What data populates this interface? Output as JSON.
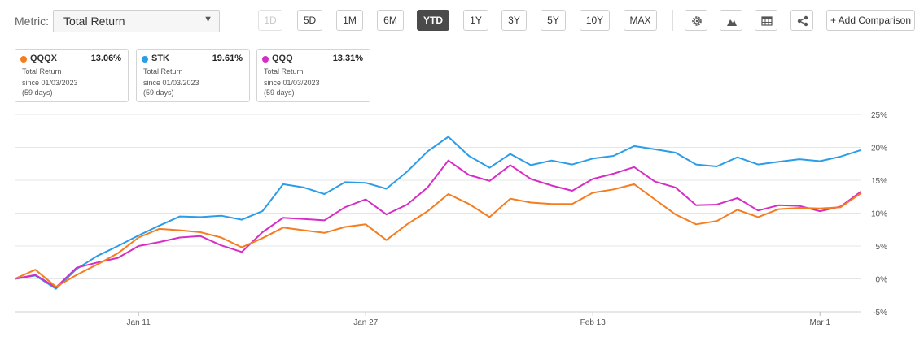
{
  "toolbar": {
    "metric_label": "Metric:",
    "metric_value": "Total Return",
    "periods": [
      {
        "label": "1D",
        "state": "disabled"
      },
      {
        "label": "5D",
        "state": "normal"
      },
      {
        "label": "1M",
        "state": "normal"
      },
      {
        "label": "6M",
        "state": "normal"
      },
      {
        "label": "YTD",
        "state": "active"
      },
      {
        "label": "1Y",
        "state": "normal"
      },
      {
        "label": "3Y",
        "state": "normal"
      },
      {
        "label": "5Y",
        "state": "normal"
      },
      {
        "label": "10Y",
        "state": "normal"
      },
      {
        "label": "MAX",
        "state": "normal"
      }
    ],
    "icons": [
      "gear-icon",
      "mountain-chart-icon",
      "table-icon",
      "share-icon"
    ],
    "add_comparison": "+ Add Comparison"
  },
  "cards": [
    {
      "ticker": "QQQX",
      "value": "13.06%",
      "color": "#f57c1f",
      "line1": "Total Return",
      "line2": "since 01/03/2023",
      "line3": "(59 days)"
    },
    {
      "ticker": "STK",
      "value": "19.61%",
      "color": "#2b9de8",
      "line1": "Total Return",
      "line2": "since 01/03/2023",
      "line3": "(59 days)"
    },
    {
      "ticker": "QQQ",
      "value": "13.31%",
      "color": "#d62ec5",
      "line1": "Total Return",
      "line2": "since 01/03/2023",
      "line3": "(59 days)"
    }
  ],
  "chart_data": {
    "type": "line",
    "y_ticks": [
      "25%",
      "20%",
      "15%",
      "10%",
      "5%",
      "0%",
      "-5%"
    ],
    "x_ticks": [
      {
        "label": "Jan 11",
        "index": 6
      },
      {
        "label": "Jan 27",
        "index": 17
      },
      {
        "label": "Feb 13",
        "index": 28
      },
      {
        "label": "Mar 1",
        "index": 39
      }
    ],
    "ylim": [
      -5,
      25
    ],
    "grid": true,
    "series": [
      {
        "name": "STK",
        "color": "#2b9de8",
        "values": [
          0,
          0.5,
          -1.5,
          1.5,
          3.5,
          5.0,
          6.6,
          8.1,
          9.5,
          9.4,
          9.6,
          9.0,
          10.3,
          14.4,
          13.9,
          12.9,
          14.7,
          14.6,
          13.7,
          16.3,
          19.4,
          21.6,
          18.7,
          16.9,
          19.0,
          17.3,
          18.0,
          17.4,
          18.3,
          18.7,
          20.2,
          19.7,
          19.2,
          17.4,
          17.1,
          18.5,
          17.4,
          17.8,
          18.2,
          17.9,
          18.6,
          19.61
        ]
      },
      {
        "name": "QQQ",
        "color": "#d62ec5",
        "values": [
          0,
          0.6,
          -1.3,
          1.7,
          2.5,
          3.2,
          5.0,
          5.6,
          6.3,
          6.5,
          5.1,
          4.1,
          7.1,
          9.3,
          9.1,
          8.9,
          10.9,
          12.1,
          9.8,
          11.3,
          13.9,
          18.0,
          15.8,
          14.9,
          17.3,
          15.2,
          14.2,
          13.4,
          15.2,
          16.0,
          17.0,
          14.8,
          13.9,
          11.2,
          11.3,
          12.3,
          10.4,
          11.2,
          11.1,
          10.3,
          11.0,
          13.31
        ]
      },
      {
        "name": "QQQX",
        "color": "#f57c1f",
        "values": [
          0,
          1.4,
          -1.2,
          0.6,
          2.2,
          3.9,
          6.3,
          7.6,
          7.4,
          7.1,
          6.3,
          4.8,
          6.2,
          7.8,
          7.4,
          7.0,
          7.9,
          8.3,
          5.9,
          8.3,
          10.3,
          12.9,
          11.4,
          9.4,
          12.2,
          11.6,
          11.4,
          11.4,
          13.1,
          13.6,
          14.4,
          12.1,
          9.8,
          8.3,
          8.8,
          10.5,
          9.4,
          10.6,
          10.8,
          10.7,
          10.9,
          13.06
        ]
      }
    ]
  }
}
